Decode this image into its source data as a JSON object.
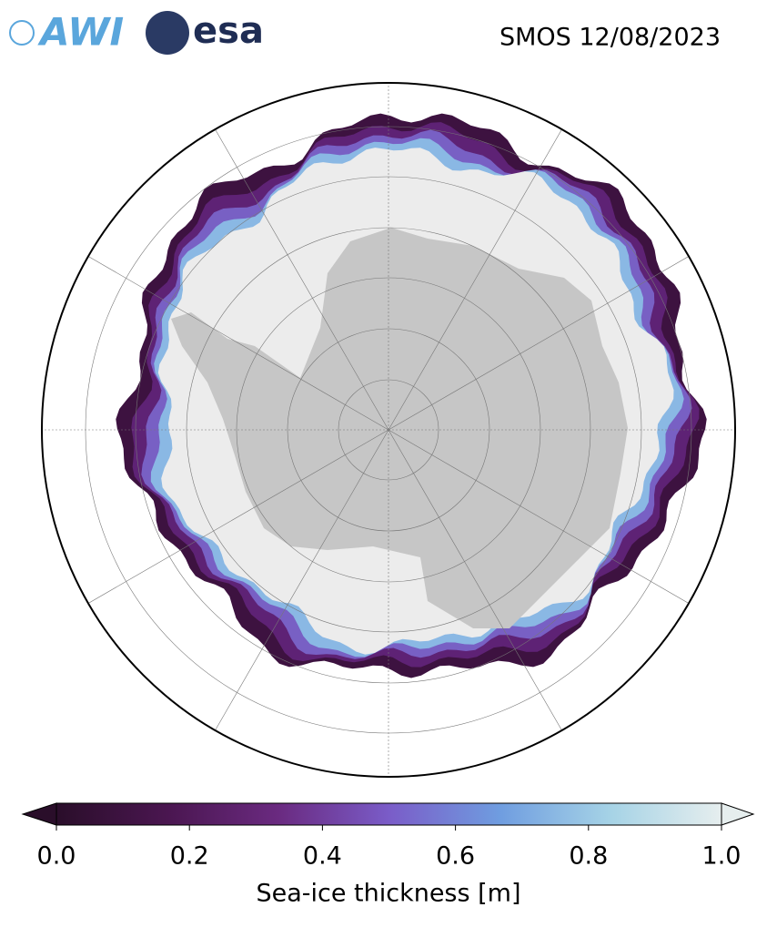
{
  "header": {
    "logos": [
      "AWI",
      "esa"
    ],
    "title": "SMOS 12/08/2023"
  },
  "colorbar": {
    "label": "Sea-ice thickness [m]",
    "lim": [
      0,
      1
    ],
    "ticks": [
      {
        "value": 0,
        "label": "0.0"
      },
      {
        "value": 0.2,
        "label": "0.2"
      },
      {
        "value": 0.4,
        "label": "0.4"
      },
      {
        "value": 0.6,
        "label": "0.6"
      },
      {
        "value": 0.8,
        "label": "0.8"
      },
      {
        "value": 1,
        "label": "1.0"
      }
    ],
    "colors": [
      "#2a0e2a",
      "#4a1650",
      "#6a2a80",
      "#7a5cc8",
      "#6f9de0",
      "#a6d3e6",
      "#e6eeee"
    ]
  }
}
